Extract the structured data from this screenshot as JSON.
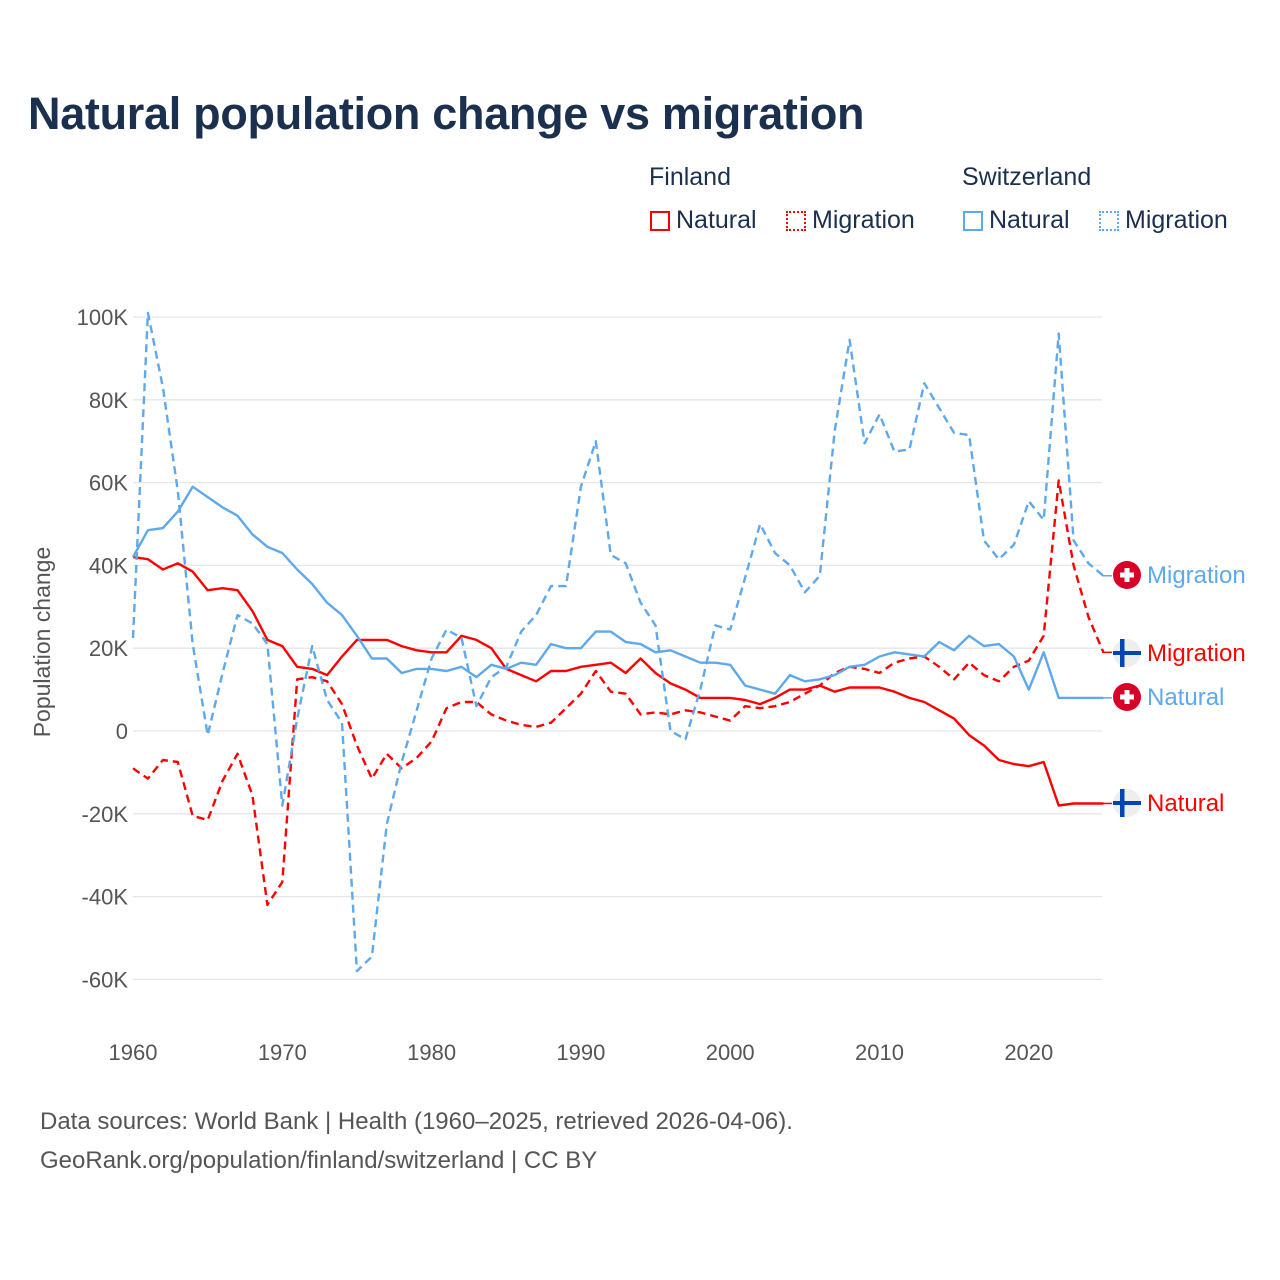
{
  "title": "Natural population change vs migration",
  "legend": {
    "groups": [
      {
        "name": "Finland",
        "color": "#ff0000",
        "items": [
          "Natural",
          "Migration"
        ]
      },
      {
        "name": "Switzerland",
        "color": "#5ea8ec",
        "items": [
          "Natural",
          "Migration"
        ]
      }
    ]
  },
  "footer": {
    "line1": "Data sources: World Bank | Health (1960–2025, retrieved 2026-04-06).",
    "line2": "GeoRank.org/population/finland/switzerland | CC BY"
  },
  "chart_data": {
    "type": "line",
    "title": "Natural population change vs migration",
    "xlabel": "",
    "ylabel": "Population change",
    "xlim": [
      1960,
      2025
    ],
    "ylim": [
      -70000,
      100000
    ],
    "x_ticks": [
      1960,
      1970,
      1980,
      1990,
      2000,
      2010,
      2020
    ],
    "x_tick_labels": [
      "1960",
      "1970",
      "1980",
      "1990",
      "2000",
      "2010",
      "2020"
    ],
    "y_ticks": [
      -60000,
      -40000,
      -20000,
      0,
      20000,
      40000,
      60000,
      80000,
      100000
    ],
    "y_tick_labels": [
      "-60K",
      "-40K",
      "-20K",
      "0",
      "20K",
      "40K",
      "60K",
      "80K",
      "100K"
    ],
    "grid": true,
    "legend_position": "top-right",
    "x_start": 1960,
    "units": "thousands",
    "series": [
      {
        "name": "Finland Natural",
        "country": "Finland",
        "kind": "Natural",
        "color": "#ff0000",
        "dashed": false,
        "end_label": "Natural",
        "flag": "finland",
        "values": [
          42,
          41.5,
          39,
          40.5,
          38.5,
          34,
          34.5,
          34,
          29,
          22,
          20.5,
          15.5,
          15,
          13.5,
          18,
          22,
          22,
          22,
          20.5,
          19.5,
          19,
          19,
          23,
          22,
          20,
          15,
          13.5,
          12,
          14.5,
          14.5,
          15.5,
          16,
          16.5,
          14,
          17.5,
          14,
          11.5,
          10,
          8,
          8,
          8,
          7.5,
          6.5,
          8,
          10,
          10,
          11,
          9.5,
          10.5,
          10.5,
          10.5,
          9.5,
          8,
          7,
          5,
          3,
          -1,
          -3.5,
          -7,
          -8,
          -8.5,
          -7.5,
          -18,
          -17.5,
          -17.5,
          -17.5
        ]
      },
      {
        "name": "Finland Migration",
        "country": "Finland",
        "kind": "Migration",
        "color": "#ff0000",
        "dashed": true,
        "end_label": "Migration",
        "flag": "finland",
        "values": [
          -9,
          -11.5,
          -7,
          -7.5,
          -20.5,
          -21.5,
          -12,
          -5.5,
          -15.5,
          -42,
          -36.5,
          12.5,
          13,
          12,
          6.5,
          -3.5,
          -11.5,
          -5.5,
          -9,
          -6.5,
          -2.5,
          5.5,
          7,
          7,
          4,
          2.5,
          1.5,
          1,
          2,
          5.5,
          9,
          14.5,
          9.5,
          9,
          4,
          4.5,
          4,
          5,
          4.5,
          3.5,
          2.5,
          6,
          5.5,
          6,
          7,
          9,
          11,
          14,
          15.5,
          15,
          14,
          16.5,
          17.5,
          18,
          15.5,
          12.5,
          16.5,
          13.5,
          12,
          15.5,
          17,
          23,
          60.5,
          40,
          27.5,
          19
        ]
      },
      {
        "name": "Switzerland Natural",
        "country": "Switzerland",
        "kind": "Natural",
        "color": "#5ea8ec",
        "dashed": false,
        "end_label": "Natural",
        "flag": "switzerland",
        "values": [
          42,
          48.5,
          49,
          53,
          59,
          56.5,
          54,
          52,
          47.5,
          44.5,
          43,
          39,
          35.5,
          31,
          28,
          23,
          17.5,
          17.5,
          14,
          15,
          15,
          14.5,
          15.5,
          13,
          16,
          15,
          16.5,
          16,
          21,
          20,
          20,
          24,
          24,
          21.5,
          21,
          19,
          19.5,
          18,
          16.5,
          16.5,
          16,
          11,
          10,
          9,
          13.5,
          12,
          12.5,
          13.5,
          15.5,
          16,
          18,
          19,
          18.5,
          18,
          21.5,
          19.5,
          23,
          20.5,
          21,
          18,
          10,
          19,
          8,
          8,
          8,
          8
        ]
      },
      {
        "name": "Switzerland Migration",
        "country": "Switzerland",
        "kind": "Migration",
        "color": "#5ea8ec",
        "dashed": true,
        "end_label": "Migration",
        "flag": "switzerland",
        "values": [
          22.5,
          101,
          83,
          58,
          21,
          -1,
          14,
          28,
          26,
          21,
          -18,
          3,
          20.5,
          7.5,
          2,
          -58,
          -54.5,
          -22.5,
          -7.5,
          5,
          17.5,
          24.5,
          22.5,
          6,
          13,
          15.5,
          24,
          28,
          35,
          35,
          59,
          70,
          42.5,
          40.5,
          31,
          25.5,
          0,
          -2,
          10,
          25.5,
          24.5,
          37,
          50,
          43,
          40,
          33.5,
          37.5,
          72.5,
          94.5,
          69.5,
          76.5,
          67.5,
          68,
          84,
          78,
          72,
          71.5,
          46,
          41.5,
          45,
          55.5,
          51,
          96,
          46,
          40.5,
          37.5
        ]
      }
    ]
  }
}
